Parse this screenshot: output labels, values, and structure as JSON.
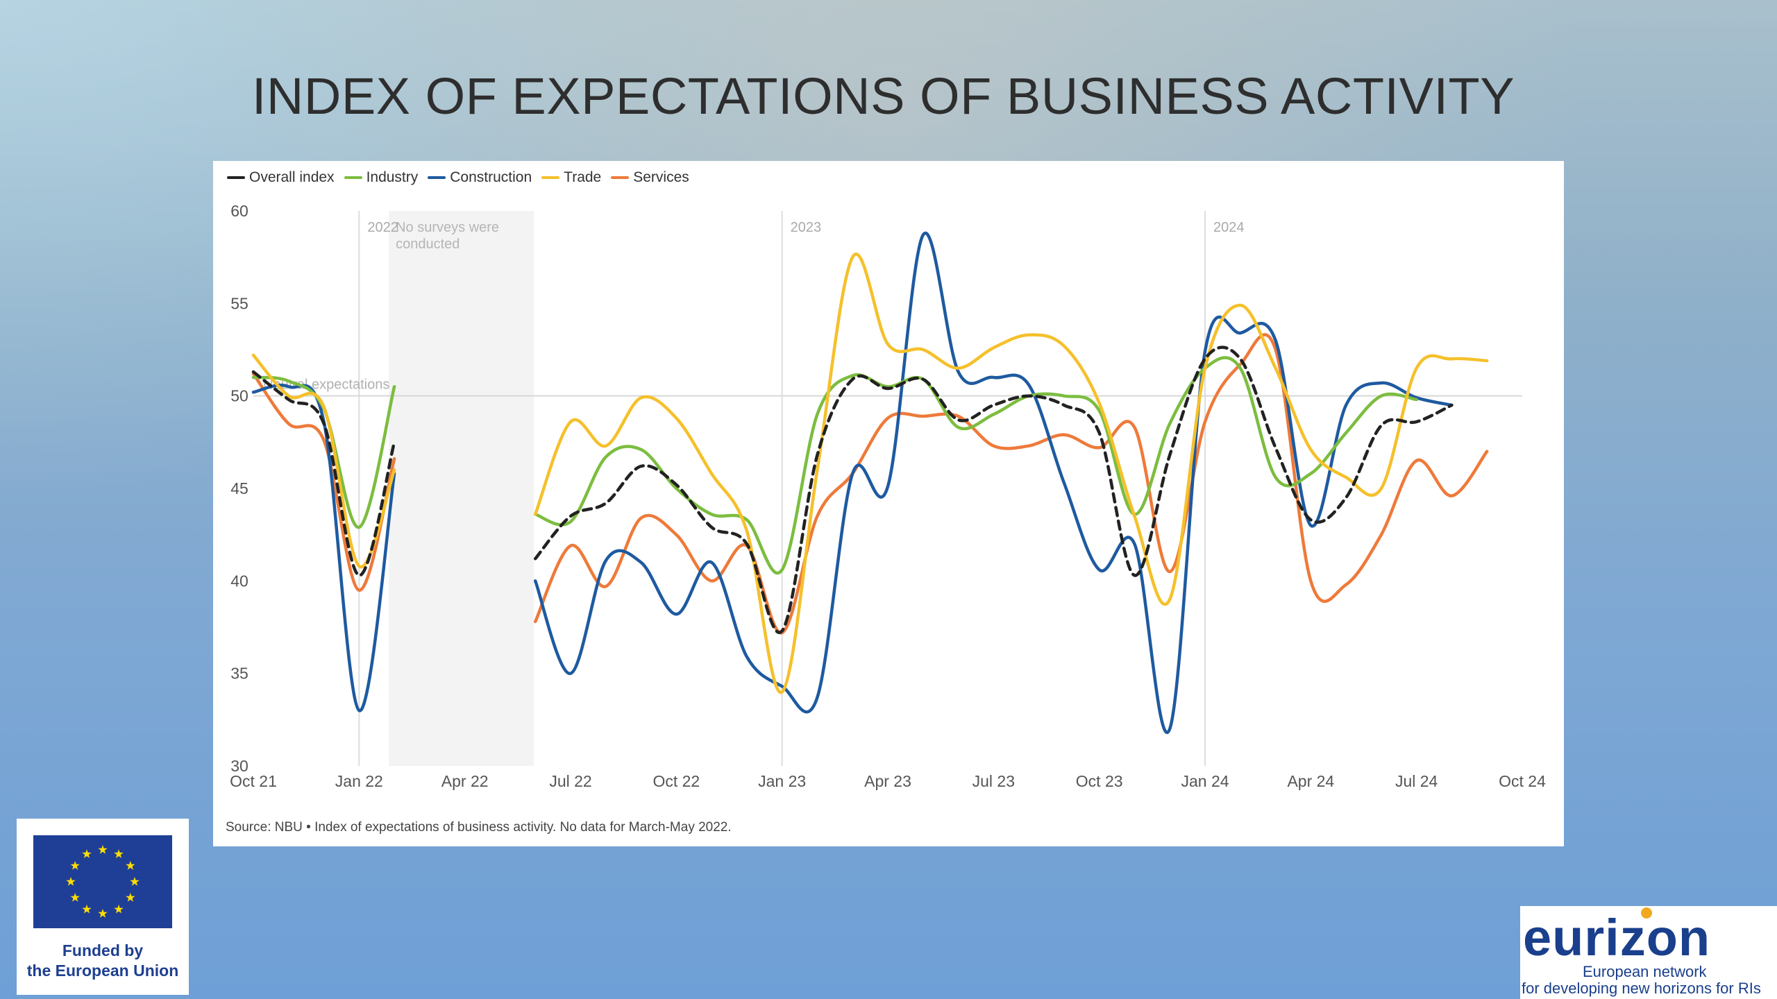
{
  "slide": {
    "title": "INDEX OF EXPECTATIONS OF BUSINESS ACTIVITY"
  },
  "chart_data": {
    "type": "line",
    "title": "",
    "xlabel": "",
    "ylabel": "",
    "ylim": [
      30,
      60
    ],
    "yticks": [
      30,
      35,
      40,
      45,
      50,
      55,
      60
    ],
    "xlim": [
      "2021-10",
      "2024-10"
    ],
    "xticks": [
      "Oct 21",
      "Jan 22",
      "Apr 22",
      "Jul 22",
      "Oct 22",
      "Jan 23",
      "Apr 23",
      "Jul 23",
      "Oct 23",
      "Jan 24",
      "Apr 24",
      "Jul 24",
      "Oct 24"
    ],
    "grid": false,
    "legend_position": "top-left",
    "year_markers": [
      {
        "label": "2022",
        "x": "2022-01"
      },
      {
        "label": "2023",
        "x": "2023-01"
      },
      {
        "label": "2024",
        "x": "2024-01"
      }
    ],
    "no_survey_band": {
      "from": "2022-02",
      "to": "2022-06",
      "label_line1": "No surveys were",
      "label_line2": "conducted"
    },
    "reference_line": {
      "y": 50,
      "label": "Neutral expectations"
    },
    "source": "Source: NBU • Index of expectations of business activity. No data for March-May 2022.",
    "x": [
      "2021-10",
      "2021-11",
      "2021-12",
      "2022-01",
      "2022-02",
      "2022-06",
      "2022-07",
      "2022-08",
      "2022-09",
      "2022-10",
      "2022-11",
      "2022-12",
      "2023-01",
      "2023-02",
      "2023-03",
      "2023-04",
      "2023-05",
      "2023-06",
      "2023-07",
      "2023-08",
      "2023-09",
      "2023-10",
      "2023-11",
      "2023-12",
      "2024-01",
      "2024-02",
      "2024-03",
      "2024-04",
      "2024-05",
      "2024-06",
      "2024-07",
      "2024-08",
      "2024-09",
      "2024-10"
    ],
    "series": [
      {
        "name": "Overall index",
        "color": "#222222",
        "dashed": true,
        "values": [
          51.3,
          49.8,
          48.5,
          40.3,
          47.5,
          41.2,
          43.5,
          44.2,
          46.2,
          45.2,
          42.9,
          42.0,
          37.3,
          46.8,
          50.9,
          50.4,
          50.9,
          48.7,
          49.5,
          50.0,
          49.5,
          48.0,
          40.3,
          46.8,
          52.0,
          52.0,
          47.2,
          43.3,
          44.5,
          48.4,
          48.6,
          49.5,
          null,
          null
        ]
      },
      {
        "name": "Industry",
        "color": "#7cbd3f",
        "dashed": false,
        "values": [
          51.0,
          50.8,
          49.3,
          42.9,
          50.5,
          43.6,
          43.2,
          46.7,
          47.1,
          45.0,
          43.6,
          43.3,
          40.6,
          49.0,
          51.1,
          50.5,
          50.9,
          48.3,
          49.0,
          50.0,
          50.0,
          49.2,
          43.6,
          48.5,
          51.5,
          51.5,
          45.6,
          45.8,
          48.0,
          50.0,
          49.8,
          null,
          null,
          null
        ]
      },
      {
        "name": "Construction",
        "color": "#1e5aa0",
        "dashed": false,
        "values": [
          50.2,
          50.5,
          48.6,
          33.0,
          45.8,
          40.0,
          35.0,
          41.1,
          41.0,
          38.2,
          41.0,
          35.9,
          34.3,
          33.7,
          45.8,
          45.1,
          58.7,
          51.3,
          51.0,
          50.6,
          45.3,
          40.6,
          42.0,
          32.0,
          52.4,
          53.4,
          53.0,
          43.0,
          49.5,
          50.7,
          49.9,
          49.5,
          null,
          null
        ]
      },
      {
        "name": "Trade",
        "color": "#f5c02b",
        "dashed": false,
        "values": [
          52.2,
          50.0,
          49.4,
          40.8,
          46.0,
          43.6,
          48.6,
          47.3,
          49.9,
          48.8,
          45.8,
          42.7,
          34.0,
          46.0,
          57.5,
          52.8,
          52.5,
          51.5,
          52.6,
          53.3,
          52.7,
          49.6,
          43.5,
          39.0,
          51.5,
          54.9,
          51.5,
          47.1,
          45.6,
          45.0,
          51.5,
          52.0,
          51.9,
          null
        ]
      },
      {
        "name": "Services",
        "color": "#ee7a3a",
        "dashed": false,
        "values": [
          51.2,
          48.5,
          47.6,
          39.5,
          46.6,
          37.8,
          41.9,
          39.7,
          43.4,
          42.5,
          40.0,
          41.9,
          37.2,
          43.5,
          45.8,
          48.8,
          48.9,
          48.9,
          47.3,
          47.3,
          47.9,
          47.2,
          48.3,
          40.5,
          48.6,
          51.7,
          52.5,
          40.0,
          39.8,
          42.5,
          46.5,
          44.6,
          47.0,
          null
        ]
      }
    ]
  },
  "badges": {
    "eu_line1": "Funded by",
    "eu_line2": "the European Union",
    "eurizon_word": "eurizon",
    "eurizon_tag1": "European network",
    "eurizon_tag2": "for developing new horizons for RIs"
  }
}
